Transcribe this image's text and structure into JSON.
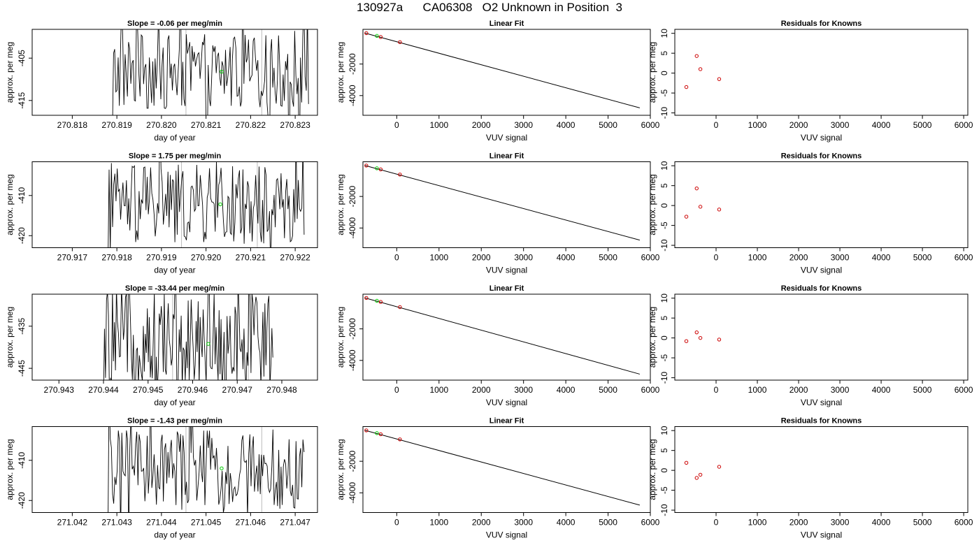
{
  "page": {
    "title": "130927a      CA06308   O2 Unknown in Position  3"
  },
  "colors": {
    "trace": "#000000",
    "marker_green": "#00cc00",
    "residual_red": "#cc0000",
    "vline_grey": "#bbbbbb"
  },
  "chart_data": [
    {
      "type": "line",
      "row": 1,
      "title": "Slope =  -0.06  per meg/min",
      "xlabel": "day of year",
      "ylabel": "approx. per meg",
      "xlim": [
        270.8171,
        270.8235
      ],
      "ylim": [
        -418.5,
        -398.2
      ],
      "xticks": [
        270.818,
        270.819,
        270.82,
        270.821,
        270.822,
        270.823
      ],
      "xtick_labels": [
        "270.818",
        "270.819",
        "270.820",
        "270.821",
        "270.822",
        "270.823"
      ],
      "yticks": [
        -415,
        -405
      ],
      "ytick_labels": [
        "-415",
        "-405"
      ],
      "trace_x_range": [
        270.8189,
        270.8233
      ],
      "trace_noise_amp": 9,
      "marker": {
        "x": 270.82135,
        "y": -408.2
      },
      "vlines": [
        270.82055,
        270.82225
      ]
    },
    {
      "type": "line",
      "row": 2,
      "title": "Slope =  1.75  per meg/min",
      "xlabel": "day of year",
      "ylabel": "approx. per meg",
      "xlim": [
        270.9161,
        270.9225
      ],
      "ylim": [
        -423.0,
        -401.6
      ],
      "xticks": [
        270.917,
        270.918,
        270.919,
        270.92,
        270.921,
        270.922
      ],
      "xtick_labels": [
        "270.917",
        "270.918",
        "270.919",
        "270.920",
        "270.921",
        "270.922"
      ],
      "yticks": [
        -420,
        -410
      ],
      "ytick_labels": [
        "-420",
        "-410"
      ],
      "trace_x_range": [
        270.9178,
        270.9222
      ],
      "trace_noise_amp": 10,
      "marker": {
        "x": 270.92032,
        "y": -412.2
      },
      "vlines": [
        270.91945,
        270.92115
      ]
    },
    {
      "type": "line",
      "row": 3,
      "title": "Slope =  -33.44  per meg/min",
      "xlabel": "day of year",
      "ylabel": "approx. per meg",
      "xlim": [
        270.9424,
        270.9488
      ],
      "ylim": [
        -447.8,
        -427.4
      ],
      "xticks": [
        270.943,
        270.944,
        270.945,
        270.946,
        270.947,
        270.948
      ],
      "xtick_labels": [
        "270.943",
        "270.944",
        "270.945",
        "270.946",
        "270.947",
        "270.948"
      ],
      "yticks": [
        -445,
        -435
      ],
      "ytick_labels": [
        "-445",
        "-435"
      ],
      "trace_x_range": [
        270.944,
        270.9478
      ],
      "trace_noise_amp": 12,
      "marker": {
        "x": 270.94635,
        "y": -439.2
      },
      "vlines": [
        270.94555,
        270.94725
      ]
    },
    {
      "type": "line",
      "row": 4,
      "title": "Slope =  -1.43  per meg/min",
      "xlabel": "day of year",
      "ylabel": "approx. per meg",
      "xlim": [
        271.0411,
        271.0475
      ],
      "ylim": [
        -423.0,
        -401.6
      ],
      "xticks": [
        271.042,
        271.043,
        271.044,
        271.045,
        271.046,
        271.047
      ],
      "xtick_labels": [
        "271.042",
        "271.043",
        "271.044",
        "271.045",
        "271.046",
        "271.047"
      ],
      "yticks": [
        -420,
        -410
      ],
      "ytick_labels": [
        "-420",
        "-410"
      ],
      "trace_x_range": [
        271.0428,
        271.0472
      ],
      "trace_noise_amp": 10,
      "marker": {
        "x": 271.04535,
        "y": -412.0
      },
      "vlines": [
        271.04455,
        271.04625
      ]
    },
    {
      "type": "scatter",
      "row": 1,
      "title": "Linear Fit",
      "xlabel": "VUV signal",
      "ylabel": "approx. per meg",
      "xlim": [
        -800,
        6000
      ],
      "ylim": [
        -5250,
        200
      ],
      "xticks": [
        0,
        1000,
        2000,
        3000,
        4000,
        5000,
        6000
      ],
      "yticks": [
        -4000,
        -2000
      ],
      "ytick_labels": [
        "-4000",
        "-2000"
      ],
      "fit_line": {
        "x": [
          -750,
          5750
        ],
        "y": [
          -40,
          -4780
        ]
      },
      "known_points": [
        {
          "x": -720,
          "y": -40
        },
        {
          "x": -380,
          "y": -285
        },
        {
          "x": 75,
          "y": -610
        }
      ],
      "unknown_points": [
        {
          "x": -470,
          "y": -215
        }
      ]
    },
    {
      "type": "scatter",
      "row": 2,
      "title": "Linear Fit",
      "xlabel": "VUV signal",
      "ylabel": "approx. per meg",
      "xlim": [
        -800,
        6000
      ],
      "ylim": [
        -5250,
        200
      ],
      "xticks": [
        0,
        1000,
        2000,
        3000,
        4000,
        5000,
        6000
      ],
      "yticks": [
        -4000,
        -2000
      ],
      "ytick_labels": [
        "-4000",
        "-2000"
      ],
      "fit_line": {
        "x": [
          -750,
          5750
        ],
        "y": [
          -40,
          -4770
        ]
      },
      "known_points": [
        {
          "x": -720,
          "y": -40
        },
        {
          "x": -380,
          "y": -285
        },
        {
          "x": 75,
          "y": -610
        }
      ],
      "unknown_points": [
        {
          "x": -470,
          "y": -215
        }
      ]
    },
    {
      "type": "scatter",
      "row": 3,
      "title": "Linear Fit",
      "xlabel": "VUV signal",
      "ylabel": "approx. per meg",
      "xlim": [
        -800,
        6000
      ],
      "ylim": [
        -5250,
        200
      ],
      "xticks": [
        0,
        1000,
        2000,
        3000,
        4000,
        5000,
        6000
      ],
      "yticks": [
        -4000,
        -2000
      ],
      "ytick_labels": [
        "-4000",
        "-2000"
      ],
      "fit_line": {
        "x": [
          -750,
          5750
        ],
        "y": [
          -40,
          -4870
        ]
      },
      "known_points": [
        {
          "x": -720,
          "y": -40
        },
        {
          "x": -380,
          "y": -290
        },
        {
          "x": 75,
          "y": -620
        }
      ],
      "unknown_points": [
        {
          "x": -470,
          "y": -220
        }
      ]
    },
    {
      "type": "scatter",
      "row": 4,
      "title": "Linear Fit",
      "xlabel": "VUV signal",
      "ylabel": "approx. per meg",
      "xlim": [
        -800,
        6000
      ],
      "ylim": [
        -5250,
        200
      ],
      "xticks": [
        0,
        1000,
        2000,
        3000,
        4000,
        5000,
        6000
      ],
      "yticks": [
        -4000,
        -2000
      ],
      "ytick_labels": [
        "-4000",
        "-2000"
      ],
      "fit_line": {
        "x": [
          -750,
          5750
        ],
        "y": [
          -40,
          -4780
        ]
      },
      "known_points": [
        {
          "x": -720,
          "y": -40
        },
        {
          "x": -380,
          "y": -285
        },
        {
          "x": 75,
          "y": -610
        }
      ],
      "unknown_points": [
        {
          "x": -470,
          "y": -215
        }
      ]
    },
    {
      "type": "scatter",
      "row": 1,
      "title": "Residuals for Knowns",
      "xlabel": "VUV signal",
      "ylabel": "approx. per meg",
      "xlim": [
        -1000,
        6100
      ],
      "ylim": [
        -10.6,
        11
      ],
      "xticks": [
        0,
        1000,
        2000,
        3000,
        4000,
        5000,
        6000
      ],
      "yticks": [
        -10,
        -5,
        0,
        5,
        10
      ],
      "ytick_labels": [
        "-10",
        "-5",
        "0",
        "5",
        "10"
      ],
      "points": [
        {
          "x": -720,
          "y": -3.5
        },
        {
          "x": -470,
          "y": 4.3
        },
        {
          "x": -380,
          "y": 1.0
        },
        {
          "x": 75,
          "y": -1.5
        }
      ]
    },
    {
      "type": "scatter",
      "row": 2,
      "title": "Residuals for Knowns",
      "xlabel": "VUV signal",
      "ylabel": "approx. per meg",
      "xlim": [
        -1000,
        6100
      ],
      "ylim": [
        -10.6,
        11
      ],
      "xticks": [
        0,
        1000,
        2000,
        3000,
        4000,
        5000,
        6000
      ],
      "yticks": [
        -10,
        -5,
        0,
        5,
        10
      ],
      "ytick_labels": [
        "-10",
        "-5",
        "0",
        "5",
        "10"
      ],
      "points": [
        {
          "x": -720,
          "y": -2.8
        },
        {
          "x": -470,
          "y": 4.3
        },
        {
          "x": -380,
          "y": -0.3
        },
        {
          "x": 75,
          "y": -1.0
        }
      ]
    },
    {
      "type": "scatter",
      "row": 3,
      "title": "Residuals for Knowns",
      "xlabel": "VUV signal",
      "ylabel": "approx. per meg",
      "xlim": [
        -1000,
        6100
      ],
      "ylim": [
        -10.6,
        11
      ],
      "xticks": [
        0,
        1000,
        2000,
        3000,
        4000,
        5000,
        6000
      ],
      "yticks": [
        -10,
        -5,
        0,
        5,
        10
      ],
      "ytick_labels": [
        "-10",
        "-5",
        "0",
        "5",
        "10"
      ],
      "points": [
        {
          "x": -720,
          "y": -0.8
        },
        {
          "x": -470,
          "y": 1.4
        },
        {
          "x": -380,
          "y": 0.0
        },
        {
          "x": 75,
          "y": -0.4
        }
      ]
    },
    {
      "type": "scatter",
      "row": 4,
      "title": "Residuals for Knowns",
      "xlabel": "VUV signal",
      "ylabel": "approx. per meg",
      "xlim": [
        -1000,
        6100
      ],
      "ylim": [
        -10.6,
        11
      ],
      "xticks": [
        0,
        1000,
        2000,
        3000,
        4000,
        5000,
        6000
      ],
      "yticks": [
        -10,
        -5,
        0,
        5,
        10
      ],
      "ytick_labels": [
        "-10",
        "-5",
        "0",
        "5",
        "10"
      ],
      "points": [
        {
          "x": -720,
          "y": 1.9
        },
        {
          "x": -470,
          "y": -1.9
        },
        {
          "x": -380,
          "y": -1.1
        },
        {
          "x": 75,
          "y": 0.9
        }
      ]
    }
  ]
}
